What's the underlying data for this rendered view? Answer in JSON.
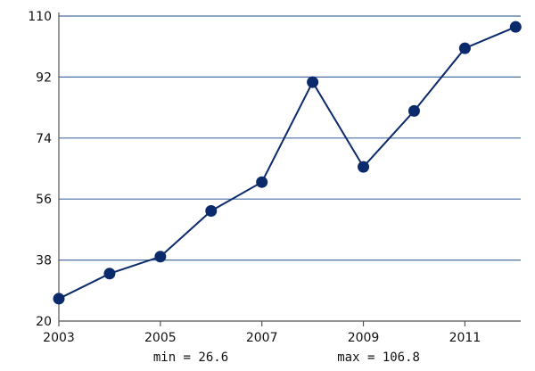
{
  "chart_data": {
    "type": "line",
    "title": "",
    "xlabel": "",
    "ylabel": "",
    "x": [
      2003,
      2004,
      2005,
      2006,
      2007,
      2008,
      2009,
      2010,
      2011,
      2012
    ],
    "series": [
      {
        "values": [
          26.6,
          34,
          39,
          52.5,
          61,
          90.5,
          65.5,
          82,
          100.5,
          106.8
        ]
      }
    ],
    "xlim": [
      2003,
      2012.1
    ],
    "ylim": [
      20,
      110
    ],
    "x_ticks": [
      2003,
      2005,
      2007,
      2009,
      2011
    ],
    "y_ticks": [
      20,
      38,
      56,
      74,
      92,
      110
    ],
    "grid": "horizontal",
    "legend": "none",
    "colors": {
      "series": "#0b2a6b",
      "grid": "#4a6fa5",
      "axis": "#555555"
    },
    "annotations": {
      "min_text": "min = 26.6",
      "max_text": "max = 106.8"
    }
  }
}
